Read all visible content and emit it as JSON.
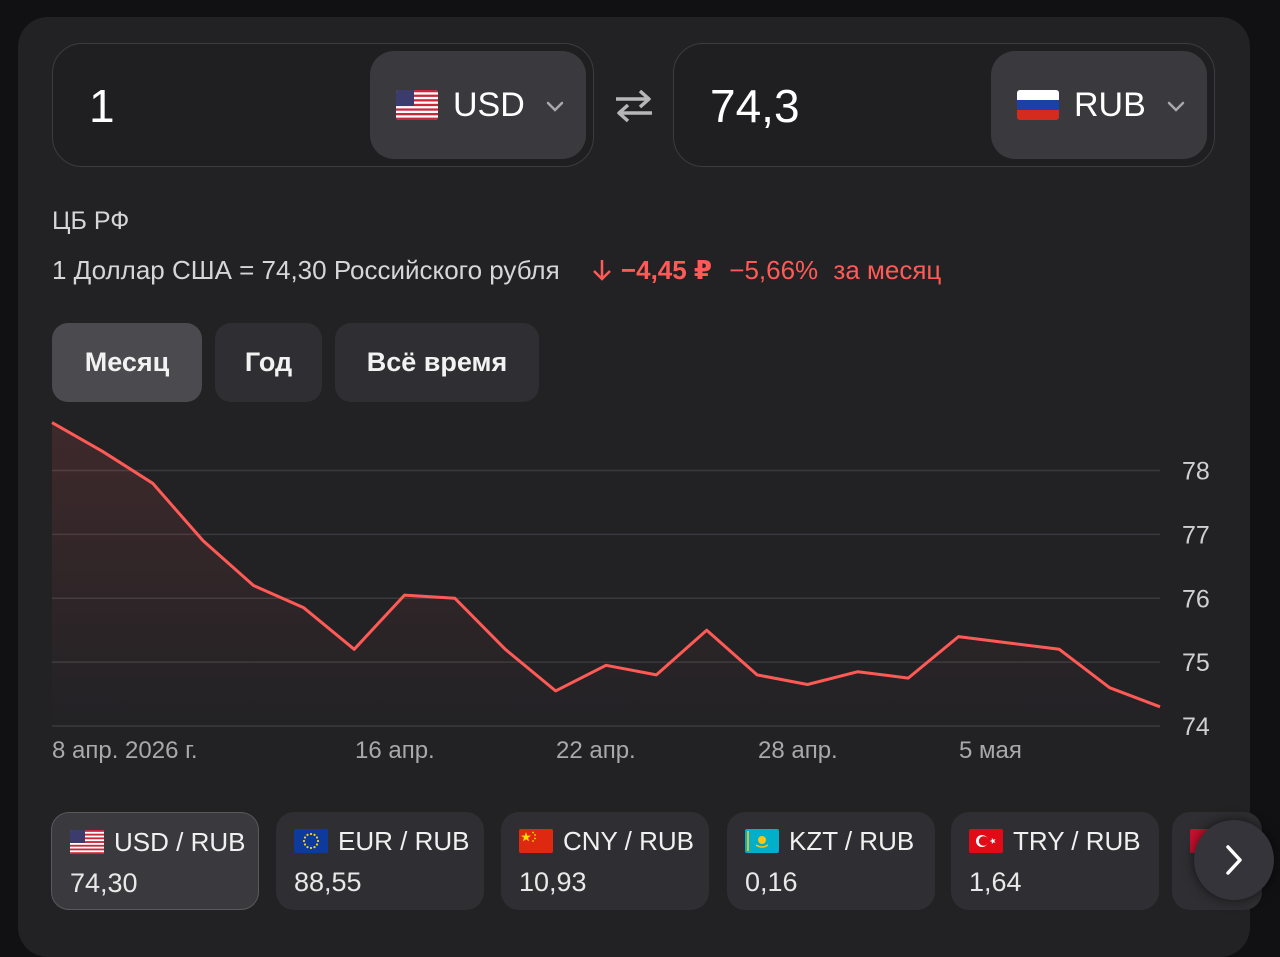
{
  "converter": {
    "from": {
      "amount": "1",
      "currency": "USD",
      "flag_icon": "us-flag-icon"
    },
    "to": {
      "amount": "74,3",
      "currency": "RUB",
      "flag_icon": "ru-flag-icon"
    }
  },
  "info": {
    "source": "ЦБ РФ",
    "rate_text": "1 Доллар США = 74,30 Российского рубля",
    "change_abs": "−4,45 ₽",
    "change_pct": "−5,66%",
    "change_period": "за месяц",
    "change_color": "#ff5a56"
  },
  "periods": [
    {
      "label": "Месяц",
      "active": true
    },
    {
      "label": "Год",
      "active": false
    },
    {
      "label": "Всё время",
      "active": false
    }
  ],
  "chart_data": {
    "type": "area",
    "title": "",
    "xlabel": "",
    "ylabel": "",
    "x_tick_labels": [
      "8 апр. 2026 г.",
      "16 апр.",
      "22 апр.",
      "28 апр.",
      "5 мая"
    ],
    "y_tick_labels": [
      "78",
      "77",
      "76",
      "75",
      "74"
    ],
    "ylim": [
      74,
      78.75
    ],
    "grid": true,
    "line_color": "#ff5a56",
    "series": [
      {
        "values": [
          78.75,
          78.3,
          77.8,
          76.9,
          76.2,
          75.85,
          75.2,
          76.05,
          76.0,
          75.2,
          74.55,
          74.95,
          74.8,
          75.5,
          74.8,
          74.65,
          74.85,
          74.75,
          75.4,
          75.3,
          75.2,
          74.6,
          74.3
        ]
      }
    ]
  },
  "pairs": [
    {
      "name": "USD / RUB",
      "value": "74,30",
      "flag_icon": "us-flag-icon",
      "active": true
    },
    {
      "name": "EUR / RUB",
      "value": "88,55",
      "flag_icon": "eu-flag-icon",
      "active": false
    },
    {
      "name": "CNY / RUB",
      "value": "10,93",
      "flag_icon": "cn-flag-icon",
      "active": false
    },
    {
      "name": "KZT / RUB",
      "value": "0,16",
      "flag_icon": "kz-flag-icon",
      "active": false
    },
    {
      "name": "TRY / RUB",
      "value": "1,64",
      "flag_icon": "tr-flag-icon",
      "active": false
    }
  ],
  "next_icon": "chevron-right-icon"
}
